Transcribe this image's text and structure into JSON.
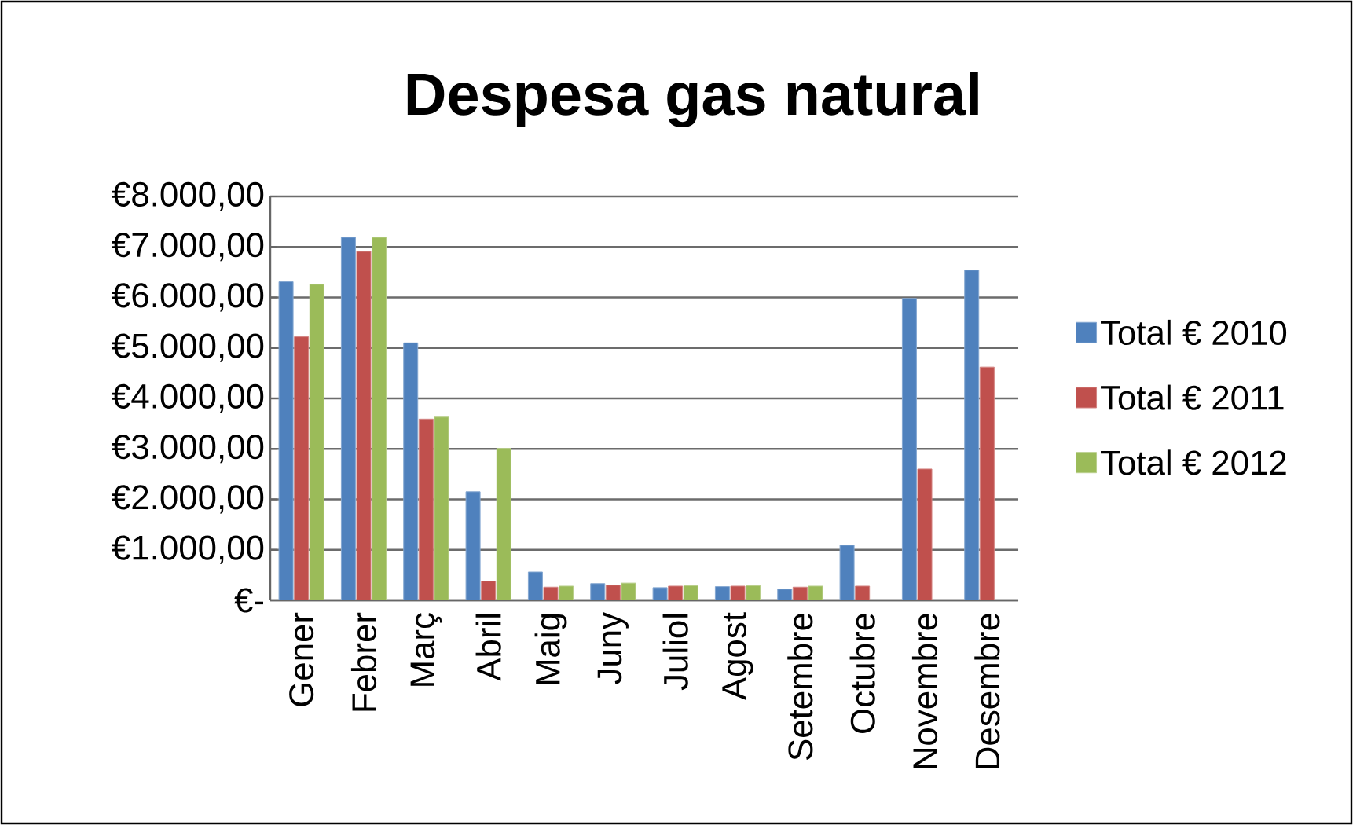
{
  "chart_data": {
    "type": "bar",
    "title": "Despesa gas natural",
    "categories": [
      "Gener",
      "Febrer",
      "Març",
      "Abril",
      "Maig",
      "Juny",
      "Juliol",
      "Agost",
      "Setembre",
      "Octubre",
      "Novembre",
      "Desembre"
    ],
    "series": [
      {
        "name": "Total € 2010",
        "color": "#4f81bd",
        "values": [
          6310,
          7190,
          5100,
          2150,
          560,
          330,
          250,
          270,
          220,
          1090,
          5980,
          6540
        ]
      },
      {
        "name": "Total € 2011",
        "color": "#c0504d",
        "values": [
          5220,
          6910,
          3590,
          380,
          260,
          300,
          280,
          280,
          260,
          280,
          2600,
          4620
        ]
      },
      {
        "name": "Total € 2012",
        "color": "#9bbb59",
        "values": [
          6260,
          7190,
          3630,
          3010,
          280,
          340,
          290,
          290,
          280,
          null,
          null,
          null
        ]
      }
    ],
    "ylim": [
      0,
      8000
    ],
    "yticks": [
      {
        "value": 0,
        "label": "€-"
      },
      {
        "value": 1000,
        "label": "€1.000,00"
      },
      {
        "value": 2000,
        "label": "€2.000,00"
      },
      {
        "value": 3000,
        "label": "€3.000,00"
      },
      {
        "value": 4000,
        "label": "€4.000,00"
      },
      {
        "value": 5000,
        "label": "€5.000,00"
      },
      {
        "value": 6000,
        "label": "€6.000,00"
      },
      {
        "value": 7000,
        "label": "€7.000,00"
      },
      {
        "value": 8000,
        "label": "€8.000,00"
      }
    ],
    "grid": "y",
    "legend": "right"
  }
}
